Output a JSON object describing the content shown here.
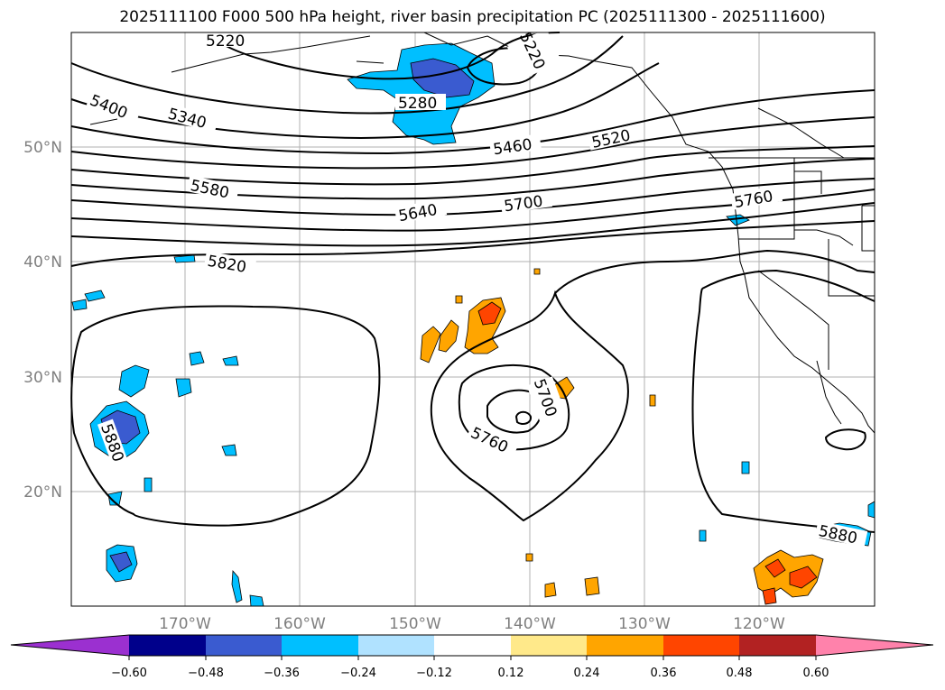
{
  "title": "2025111100 F000 500 hPa height, river basin precipitation PC (2025111300 - 2025111600)",
  "lat_labels": [
    "50°N",
    "40°N",
    "30°N",
    "20°N"
  ],
  "lon_labels": [
    "170°W",
    "160°W",
    "150°W",
    "140°W",
    "130°W",
    "120°W"
  ],
  "contour_labels": [
    "5220",
    "5220",
    "5280",
    "5340",
    "5400",
    "5460",
    "5520",
    "5580",
    "5640",
    "5700",
    "5760",
    "5820",
    "5700",
    "5760",
    "5880",
    "5880"
  ],
  "colorbar": {
    "tick_labels": [
      "−0.60",
      "−0.48",
      "−0.36",
      "−0.24",
      "−0.12",
      "0.12",
      "0.24",
      "0.36",
      "0.48",
      "0.60"
    ],
    "colors": [
      "#9b30d0",
      "#00008b",
      "#3a5bd0",
      "#00bfff",
      "#b0e2ff",
      "#ffffff",
      "#ffe98a",
      "#ffa500",
      "#ff4500",
      "#b22222",
      "#ff82ab"
    ]
  }
}
